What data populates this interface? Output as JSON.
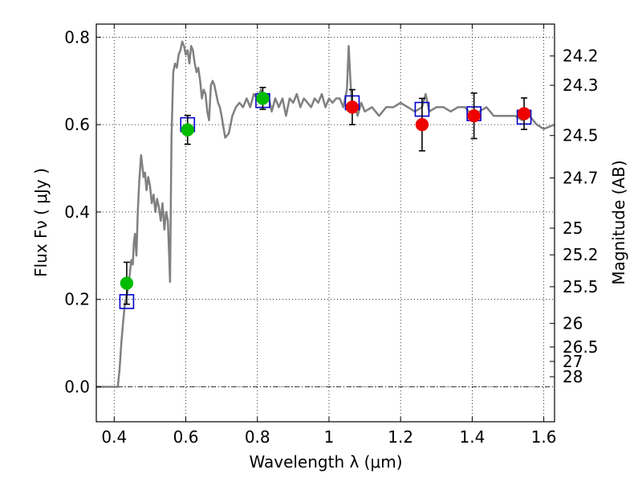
{
  "chart_data": {
    "type": "scatter",
    "xlabel": "Wavelength  λ (μm)",
    "ylabel": "Flux  Fν  ( μJy )",
    "ylabel_right": "Magnitude (AB)",
    "xlim": [
      0.35,
      1.63
    ],
    "ylim": [
      -0.08,
      0.83
    ],
    "grid": true,
    "x_ticks": [
      0.4,
      0.6,
      0.8,
      1.0,
      1.2,
      1.4,
      1.6
    ],
    "x_tick_labels": [
      "0.4",
      "0.6",
      "0.8",
      "1",
      "1.2",
      "1.4",
      "1.6"
    ],
    "y_ticks": [
      0.0,
      0.2,
      0.4,
      0.6,
      0.8
    ],
    "y_tick_labels": [
      "0.0",
      "0.2",
      "0.4",
      "0.6",
      "0.8"
    ],
    "mag_ticks": [
      {
        "label": "24.2",
        "flux": 0.757
      },
      {
        "label": "24.3",
        "flux": 0.69
      },
      {
        "label": "24.5",
        "flux": 0.575
      },
      {
        "label": "24.7",
        "flux": 0.478
      },
      {
        "label": "25",
        "flux": 0.363
      },
      {
        "label": "25.2",
        "flux": 0.302
      },
      {
        "label": "25.5",
        "flux": 0.229
      },
      {
        "label": "26",
        "flux": 0.145
      },
      {
        "label": "26.5",
        "flux": 0.091
      },
      {
        "label": "27",
        "flux": 0.058
      },
      {
        "label": "28",
        "flux": 0.023
      }
    ],
    "series": [
      {
        "kind": "line",
        "color": "#808080",
        "x": [
          0.35,
          0.41,
          0.415,
          0.42,
          0.425,
          0.43,
          0.435,
          0.44,
          0.445,
          0.448,
          0.452,
          0.455,
          0.458,
          0.462,
          0.466,
          0.47,
          0.475,
          0.478,
          0.482,
          0.486,
          0.49,
          0.495,
          0.5,
          0.505,
          0.51,
          0.515,
          0.52,
          0.525,
          0.53,
          0.535,
          0.54,
          0.545,
          0.55,
          0.553,
          0.556,
          0.56,
          0.565,
          0.57,
          0.575,
          0.58,
          0.585,
          0.59,
          0.595,
          0.6,
          0.605,
          0.61,
          0.615,
          0.62,
          0.625,
          0.63,
          0.635,
          0.64,
          0.645,
          0.65,
          0.655,
          0.66,
          0.665,
          0.67,
          0.675,
          0.68,
          0.685,
          0.69,
          0.695,
          0.7,
          0.71,
          0.72,
          0.73,
          0.74,
          0.75,
          0.76,
          0.77,
          0.78,
          0.79,
          0.8,
          0.81,
          0.82,
          0.83,
          0.84,
          0.85,
          0.86,
          0.87,
          0.88,
          0.89,
          0.9,
          0.91,
          0.92,
          0.93,
          0.94,
          0.95,
          0.96,
          0.97,
          0.98,
          0.99,
          1.0,
          1.01,
          1.02,
          1.03,
          1.04,
          1.05,
          1.055,
          1.06,
          1.065,
          1.07,
          1.08,
          1.09,
          1.1,
          1.12,
          1.14,
          1.16,
          1.18,
          1.2,
          1.22,
          1.24,
          1.26,
          1.27,
          1.28,
          1.3,
          1.32,
          1.34,
          1.36,
          1.38,
          1.4,
          1.42,
          1.44,
          1.46,
          1.48,
          1.5,
          1.52,
          1.54,
          1.56,
          1.58,
          1.6,
          1.63
        ],
        "y": [
          0.0,
          0.0,
          0.04,
          0.1,
          0.15,
          0.19,
          0.21,
          0.23,
          0.27,
          0.29,
          0.28,
          0.33,
          0.35,
          0.3,
          0.4,
          0.47,
          0.53,
          0.51,
          0.48,
          0.49,
          0.45,
          0.48,
          0.46,
          0.42,
          0.44,
          0.4,
          0.43,
          0.41,
          0.38,
          0.42,
          0.36,
          0.4,
          0.38,
          0.31,
          0.24,
          0.57,
          0.72,
          0.74,
          0.73,
          0.76,
          0.77,
          0.79,
          0.78,
          0.76,
          0.77,
          0.74,
          0.78,
          0.77,
          0.74,
          0.72,
          0.73,
          0.7,
          0.66,
          0.68,
          0.67,
          0.63,
          0.61,
          0.69,
          0.7,
          0.69,
          0.67,
          0.65,
          0.64,
          0.62,
          0.57,
          0.58,
          0.62,
          0.64,
          0.65,
          0.64,
          0.66,
          0.64,
          0.67,
          0.66,
          0.68,
          0.65,
          0.67,
          0.63,
          0.66,
          0.64,
          0.66,
          0.62,
          0.66,
          0.65,
          0.67,
          0.64,
          0.66,
          0.65,
          0.64,
          0.66,
          0.65,
          0.67,
          0.64,
          0.66,
          0.65,
          0.66,
          0.66,
          0.64,
          0.68,
          0.78,
          0.7,
          0.63,
          0.65,
          0.62,
          0.65,
          0.63,
          0.64,
          0.62,
          0.64,
          0.64,
          0.65,
          0.64,
          0.63,
          0.64,
          0.67,
          0.63,
          0.64,
          0.64,
          0.63,
          0.64,
          0.64,
          0.62,
          0.63,
          0.64,
          0.62,
          0.62,
          0.62,
          0.62,
          0.61,
          0.62,
          0.6,
          0.59,
          0.6
        ]
      },
      {
        "kind": "square",
        "color": "#0000cc",
        "x": [
          0.435,
          0.605,
          0.815,
          1.065,
          1.26,
          1.405,
          1.545
        ],
        "y": [
          0.195,
          0.6,
          0.655,
          0.65,
          0.635,
          0.625,
          0.617
        ]
      },
      {
        "kind": "circle",
        "color": "#00bb00",
        "x": [
          0.435,
          0.605,
          0.815
        ],
        "y": [
          0.237,
          0.588,
          0.66
        ],
        "yerr": [
          0.048,
          0.033,
          0.025
        ]
      },
      {
        "kind": "circle",
        "color": "#ee0000",
        "x": [
          1.065,
          1.26,
          1.405,
          1.545
        ],
        "y": [
          0.64,
          0.6,
          0.62,
          0.625
        ],
        "yerr": [
          0.04,
          0.06,
          0.052,
          0.036
        ]
      }
    ]
  }
}
